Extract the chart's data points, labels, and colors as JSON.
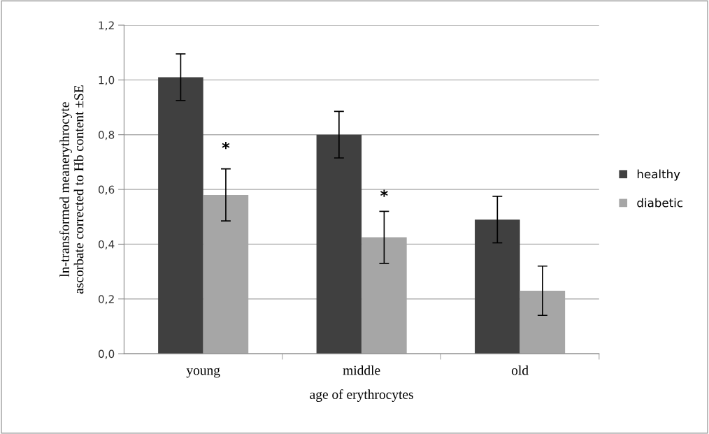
{
  "chart_data": {
    "type": "bar",
    "xlabel": "age of erythrocytes",
    "ylabel": "ln-transformed meanerythrocyte\nascorbate corrected to Hb content ±SE",
    "categories": [
      "young",
      "middle",
      "old"
    ],
    "series": [
      {
        "name": "healthy",
        "color": "#404040",
        "values": [
          1.01,
          0.8,
          0.49
        ],
        "errors": [
          0.085,
          0.085,
          0.085
        ]
      },
      {
        "name": "diabetic",
        "color": "#a6a6a6",
        "values": [
          0.58,
          0.425,
          0.23
        ],
        "errors": [
          0.095,
          0.095,
          0.09
        ]
      }
    ],
    "annotations": [
      {
        "text": "*",
        "x": "young",
        "y": 0.72
      },
      {
        "text": "*",
        "x": "middle",
        "y": 0.545
      }
    ],
    "ylim": [
      0,
      1.2
    ],
    "yticks": [
      {
        "value": 0,
        "label": "0,0"
      },
      {
        "value": 0.2,
        "label": "0,2"
      },
      {
        "value": 0.4,
        "label": "0,4"
      },
      {
        "value": 0.6,
        "label": "0,6"
      },
      {
        "value": 0.8,
        "label": "0,8"
      },
      {
        "value": 1.0,
        "label": "1,0"
      },
      {
        "value": 1.2,
        "label": "1,2"
      }
    ],
    "grid": "y",
    "legend": "right"
  }
}
